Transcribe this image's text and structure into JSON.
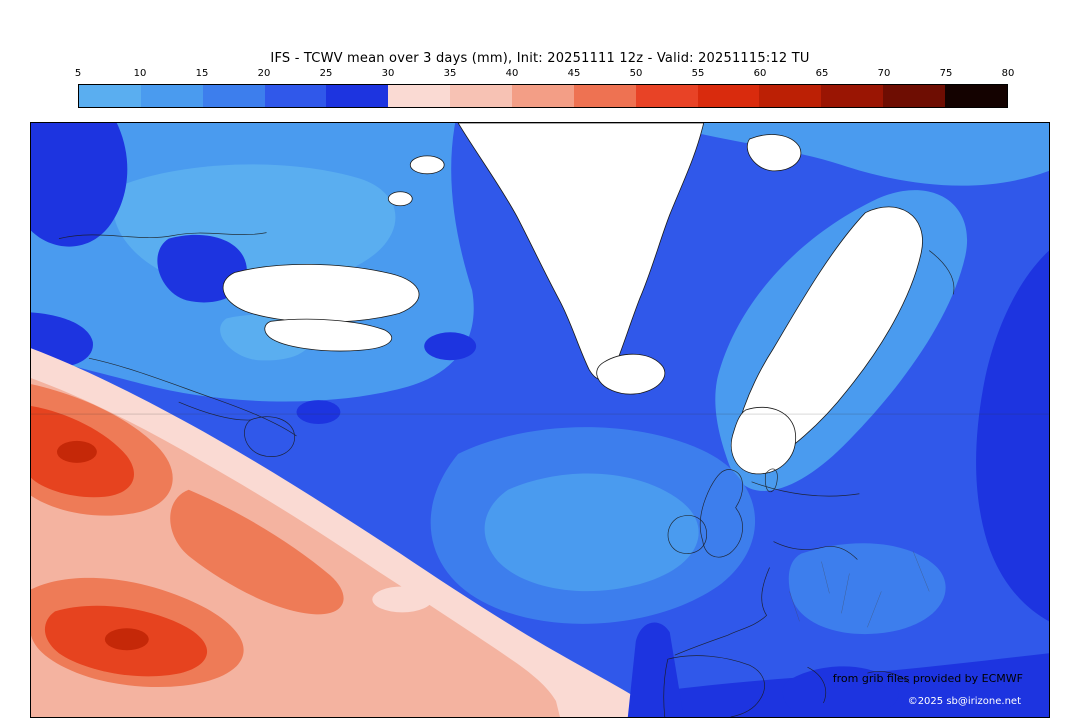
{
  "title": "IFS - TCWV mean over 3 days (mm), Init: 20251111 12z - Valid: 20251115:12 TU",
  "colorbar": {
    "unit": "mm",
    "tick_labels": [
      "5",
      "10",
      "15",
      "20",
      "25",
      "30",
      "35",
      "40",
      "45",
      "50",
      "55",
      "60",
      "65",
      "70",
      "75",
      "80"
    ],
    "segment_colors": [
      "#5AAEF0",
      "#4A9BEF",
      "#3D7EED",
      "#3058EA",
      "#1D34E0",
      "#FADAD3",
      "#F7C2B4",
      "#F39E86",
      "#EE7252",
      "#E84326",
      "#D92B0D",
      "#BC2005",
      "#9A1503",
      "#6E0D02",
      "#140200"
    ]
  },
  "map": {
    "attribution_line1": "from grib files provided by ECMWF",
    "attribution_line2": "©2025 sb@irizone.net",
    "colors": {
      "base": "#3058EA",
      "light": "#4A9BEF",
      "lighter": "#5AAEF0",
      "midlight": "#3D7EED",
      "dark": "#1D34E0",
      "land_dry": "#FFFFFF",
      "pink": "#FADAD3",
      "salmon": "#F4B3A0",
      "coral": "#EE7B57",
      "red": "#E6431F",
      "dark_red": "#C52808",
      "coast": "#1a1a1a",
      "border_line": "#444444",
      "grid_line": "#333333"
    }
  }
}
